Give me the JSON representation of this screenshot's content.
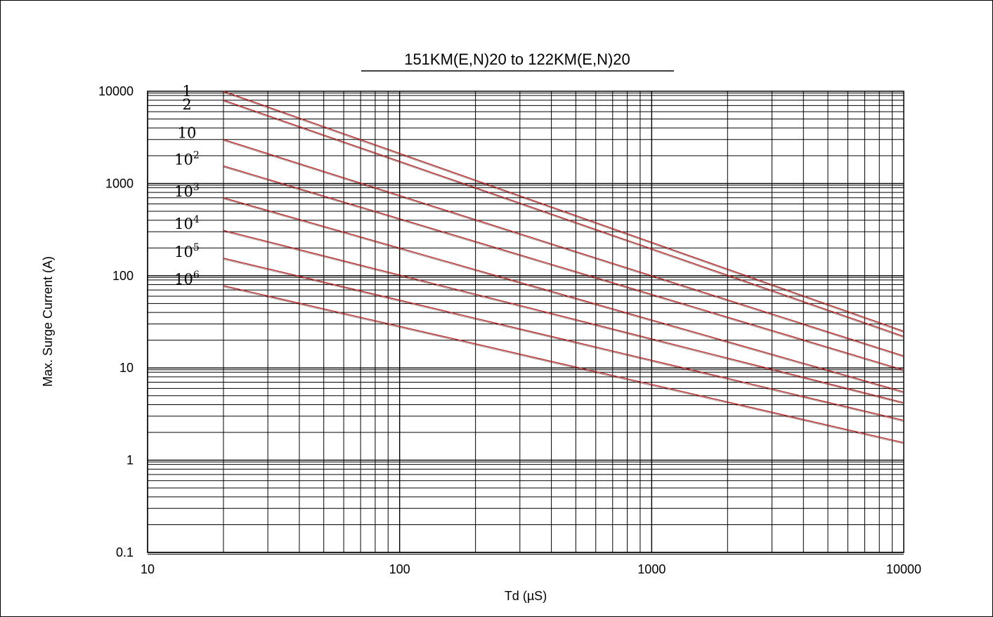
{
  "chart_data": {
    "type": "line",
    "title": "151KM(E,N)20  to 122KM(E,N)20",
    "xlabel": "Td (µS)",
    "ylabel": "Max. Surge Current (A)",
    "x_scale": "log",
    "y_scale": "log",
    "xlim": [
      10,
      10000
    ],
    "ylim": [
      0.1,
      10000
    ],
    "x_ticks": [
      "10",
      "100",
      "1000",
      "10000"
    ],
    "y_ticks": [
      "0.1",
      "1",
      "10",
      "100",
      "1000",
      "10000"
    ],
    "grid": true,
    "line_color": "#b22222",
    "series": [
      {
        "name": "1",
        "label_base": "1",
        "label_exp": "",
        "x": [
          20,
          10000
        ],
        "y": [
          10000,
          25
        ]
      },
      {
        "name": "2",
        "label_base": "2",
        "label_exp": "",
        "x": [
          20,
          10000
        ],
        "y": [
          8000,
          22
        ]
      },
      {
        "name": "10",
        "label_base": "10",
        "label_exp": "",
        "x": [
          20,
          10000
        ],
        "y": [
          3000,
          13.5
        ]
      },
      {
        "name": "10^2",
        "label_base": "10",
        "label_exp": "2",
        "x": [
          20,
          10000
        ],
        "y": [
          1550,
          9.5
        ]
      },
      {
        "name": "10^3",
        "label_base": "10",
        "label_exp": "3",
        "x": [
          20,
          10000
        ],
        "y": [
          700,
          5.5
        ]
      },
      {
        "name": "10^4",
        "label_base": "10",
        "label_exp": "4",
        "x": [
          20,
          10000
        ],
        "y": [
          310,
          4.2
        ]
      },
      {
        "name": "10^5",
        "label_base": "10",
        "label_exp": "5",
        "x": [
          20,
          10000
        ],
        "y": [
          155,
          2.7
        ]
      },
      {
        "name": "10^6",
        "label_base": "10",
        "label_exp": "6",
        "x": [
          20,
          10000
        ],
        "y": [
          78,
          1.55
        ]
      }
    ]
  }
}
